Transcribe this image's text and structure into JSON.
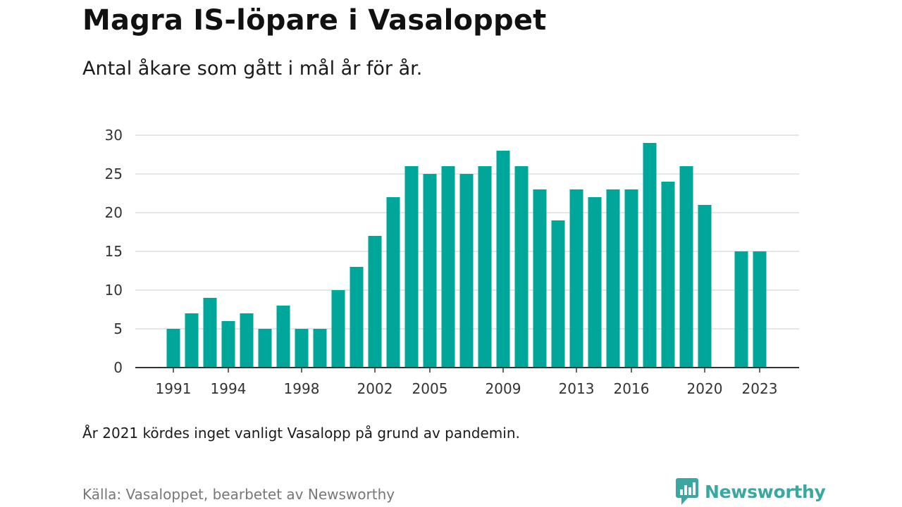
{
  "header": {
    "title": "Magra IS-löpare i Vasaloppet",
    "subtitle": "Antal åkare som gått i mål år för år."
  },
  "footer": {
    "note": "År 2021 kördes inget vanligt Vasalopp på grund av pandemin.",
    "source": "Källa: Vasaloppet, bearbetet av Newsworthy",
    "brand_name": "Newsworthy",
    "brand_icon": "bar-chart-speech-bubble-icon"
  },
  "colors": {
    "bar": "#00a69a",
    "brand": "#3aa8a0",
    "grid": "#dddddd",
    "axis": "#333333"
  },
  "chart_data": {
    "type": "bar",
    "title": "Magra IS-löpare i Vasaloppet",
    "subtitle": "Antal åkare som gått i mål år för år.",
    "xlabel": "",
    "ylabel": "",
    "ylim": [
      0,
      30
    ],
    "yticks": [
      0,
      5,
      10,
      15,
      20,
      25,
      30
    ],
    "xticks": [
      1991,
      1994,
      1998,
      2002,
      2005,
      2009,
      2013,
      2016,
      2020,
      2023
    ],
    "grid": true,
    "legend": "none",
    "categories": [
      1991,
      1992,
      1993,
      1994,
      1995,
      1996,
      1997,
      1998,
      1999,
      2000,
      2001,
      2002,
      2003,
      2004,
      2005,
      2006,
      2007,
      2008,
      2009,
      2010,
      2011,
      2012,
      2013,
      2014,
      2015,
      2016,
      2017,
      2018,
      2019,
      2020,
      2021,
      2022,
      2023
    ],
    "values": [
      5,
      7,
      9,
      6,
      7,
      5,
      8,
      5,
      5,
      10,
      13,
      17,
      22,
      26,
      25,
      26,
      25,
      26,
      28,
      26,
      23,
      19,
      23,
      22,
      23,
      23,
      29,
      24,
      26,
      21,
      null,
      15,
      15
    ]
  }
}
